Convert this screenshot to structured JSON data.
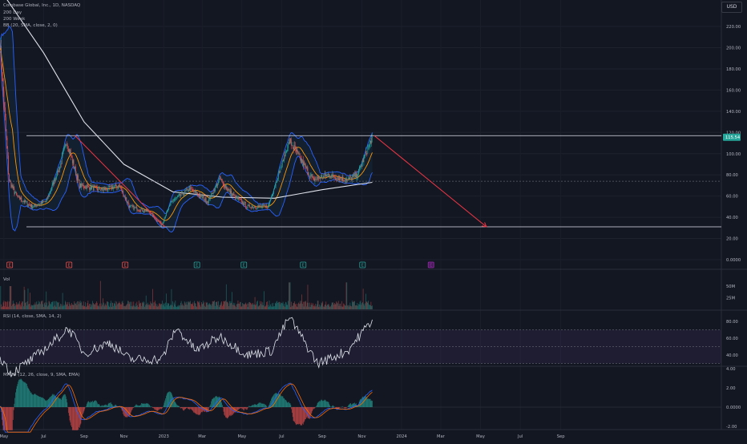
{
  "header": {
    "symbol_title": "Coinbase Global, Inc., 1D, NASDAQ",
    "ma200_day": "200 Day",
    "ma200_week": "200 Week",
    "bb_label": "BB (20, SMA, close, 2, 0)",
    "currency": "USD"
  },
  "panes": {
    "vol_label": "Vol",
    "rsi_label": "RSI (14, close, SMA, 14, 2)",
    "macd_label": "MACD (12, 26, close, 9, SMA, EMA)"
  },
  "colors": {
    "background": "#131722",
    "up": "#26a69a",
    "down": "#ef5350",
    "bb": "#2962ff",
    "basis": "#ff9800",
    "ma200": "#e0e3eb",
    "trendline": "#f23645",
    "rsi": "#e0e3eb",
    "rsi_band": "#7e57c2",
    "macd_line": "#2962ff",
    "signal_line": "#ff6d00",
    "earnings_past_up": "#26a69a",
    "earnings_past_down": "#ef5350",
    "earnings_future": "#9c27b0"
  },
  "chart_data": [
    {
      "type": "candlestick",
      "title": "Coinbase Global, Inc., 1D, NASDAQ",
      "x_ticks": [
        "May",
        "Jul",
        "Sep",
        "Nov",
        "2023",
        "Mar",
        "May",
        "Jul",
        "Sep",
        "Nov",
        "2024",
        "Mar",
        "May",
        "Jul",
        "Sep"
      ],
      "y_ticks": [
        "220.00",
        "200.00",
        "180.00",
        "160.00",
        "140.00",
        "120.00",
        "100.00",
        "80.00",
        "60.00",
        "40.00",
        "20.00",
        "0.0000"
      ],
      "ylim": [
        0,
        230
      ],
      "last_price": "115.54",
      "price_path": [
        [
          "2022-04-25",
          205
        ],
        [
          "2022-05-09",
          75
        ],
        [
          "2022-05-20",
          60
        ],
        [
          "2022-06-13",
          50
        ],
        [
          "2022-07-05",
          55
        ],
        [
          "2022-07-27",
          90
        ],
        [
          "2022-08-05",
          112
        ],
        [
          "2022-08-25",
          70
        ],
        [
          "2022-09-30",
          66
        ],
        [
          "2022-10-25",
          70
        ],
        [
          "2022-11-10",
          50
        ],
        [
          "2022-12-10",
          45
        ],
        [
          "2022-12-29",
          33
        ],
        [
          "2023-01-13",
          55
        ],
        [
          "2023-01-25",
          60
        ],
        [
          "2023-02-10",
          67
        ],
        [
          "2023-03-10",
          55
        ],
        [
          "2023-03-28",
          76
        ],
        [
          "2023-04-15",
          62
        ],
        [
          "2023-05-10",
          50
        ],
        [
          "2023-06-10",
          50
        ],
        [
          "2023-07-13",
          112
        ],
        [
          "2023-07-25",
          100
        ],
        [
          "2023-08-18",
          75
        ],
        [
          "2023-09-10",
          80
        ],
        [
          "2023-10-10",
          75
        ],
        [
          "2023-10-25",
          80
        ],
        [
          "2023-11-17",
          115.54
        ]
      ],
      "ma_200_day": [
        [
          "2022-04-25",
          255
        ],
        [
          "2022-07-01",
          195
        ],
        [
          "2022-09-01",
          130
        ],
        [
          "2022-11-01",
          90
        ],
        [
          "2023-01-15",
          64
        ],
        [
          "2023-04-01",
          59
        ],
        [
          "2023-06-20",
          58
        ],
        [
          "2023-09-01",
          66
        ],
        [
          "2023-11-17",
          73
        ]
      ],
      "levels": {
        "resistance": 117,
        "support": 31,
        "dashed_level": 74,
        "downtrend_line_2022": [
          [
            "2022-08-18",
            117
          ],
          [
            "2023-01-03",
            31
          ]
        ],
        "projected_downtrend": [
          [
            "2023-11-20",
            117
          ],
          [
            "2024-05-10",
            31
          ]
        ]
      },
      "earnings_markers": [
        {
          "date": "2022-05-10",
          "kind": "past-miss"
        },
        {
          "date": "2022-08-09",
          "kind": "past-miss"
        },
        {
          "date": "2022-11-03",
          "kind": "past-miss"
        },
        {
          "date": "2023-02-21",
          "kind": "past-beat"
        },
        {
          "date": "2023-05-04",
          "kind": "past-beat"
        },
        {
          "date": "2023-08-03",
          "kind": "past-beat"
        },
        {
          "date": "2023-11-02",
          "kind": "past-beat"
        },
        {
          "date": "2024-02-15",
          "kind": "upcoming"
        }
      ]
    },
    {
      "type": "bar",
      "title": "Vol",
      "y_ticks": [
        "50M",
        "25M"
      ],
      "ylim": [
        0,
        62
      ]
    },
    {
      "type": "line",
      "title": "RSI (14, close, SMA, 14, 2)",
      "y_ticks": [
        "80.00",
        "60.00",
        "40.00"
      ],
      "ylim": [
        25,
        90
      ],
      "bands": [
        70,
        50,
        30
      ],
      "rsi_path": [
        [
          "2022-04-25",
          38
        ],
        [
          "2022-05-12",
          18
        ],
        [
          "2022-06-13",
          35
        ],
        [
          "2022-07-15",
          55
        ],
        [
          "2022-08-08",
          72
        ],
        [
          "2022-09-01",
          42
        ],
        [
          "2022-10-10",
          55
        ],
        [
          "2022-11-10",
          35
        ],
        [
          "2022-12-29",
          35
        ],
        [
          "2023-01-20",
          72
        ],
        [
          "2023-02-20",
          45
        ],
        [
          "2023-03-28",
          62
        ],
        [
          "2023-05-10",
          40
        ],
        [
          "2023-06-15",
          45
        ],
        [
          "2023-07-13",
          85
        ],
        [
          "2023-08-25",
          30
        ],
        [
          "2023-10-10",
          45
        ],
        [
          "2023-11-17",
          82
        ]
      ]
    },
    {
      "type": "bar",
      "title": "MACD (12, 26, close, 9, SMA, EMA)",
      "y_ticks": [
        "4.00",
        "2.00",
        "0.0000",
        "-2.00"
      ],
      "ylim": [
        -2.7,
        4.3
      ]
    }
  ]
}
